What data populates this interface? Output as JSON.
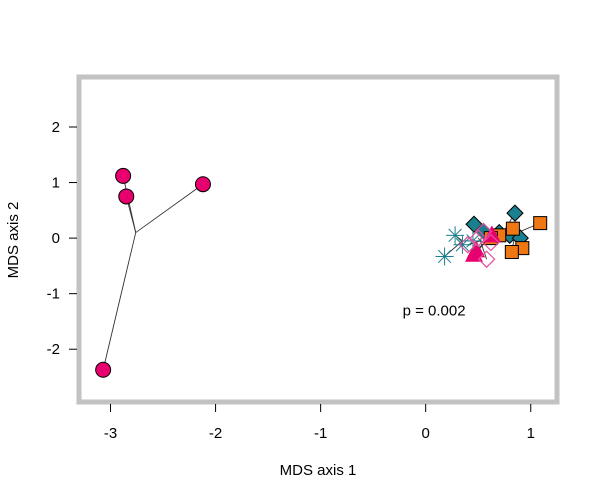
{
  "chart_data": {
    "type": "scatter",
    "title": "",
    "xlabel": "MDS axis 1",
    "ylabel": "MDS axis 2",
    "xlim": [
      -3.3,
      1.25
    ],
    "ylim": [
      -2.95,
      2.9
    ],
    "x_ticks": [
      -3,
      -2,
      -1,
      0,
      1
    ],
    "y_ticks": [
      -2,
      -1,
      0,
      1,
      2
    ],
    "x_tick_labels": [
      "-3",
      "-2",
      "-1",
      "0",
      "1"
    ],
    "y_tick_labels": [
      "-2",
      "-1",
      "0",
      "1",
      "2"
    ],
    "grid": false,
    "legend": null,
    "annotation": {
      "text": "p = 0.002",
      "x": 0.08,
      "y": -1.3
    },
    "colors": {
      "magenta": "#e8006f",
      "teal": "#1a7f8e",
      "orange": "#f07814",
      "pink": "#e8509c",
      "frame": "#c2c2c2"
    },
    "groups": [
      {
        "marker": "circle",
        "color": "magenta",
        "centroid": [
          -2.76,
          0.1
        ],
        "points": [
          [
            -2.88,
            1.12
          ],
          [
            -2.85,
            0.75
          ],
          [
            -2.12,
            0.97
          ],
          [
            -3.07,
            -2.37
          ]
        ]
      },
      {
        "marker": "diamond-filled",
        "color": "teal",
        "centroid": [
          0.72,
          0.05
        ],
        "points": [
          [
            0.46,
            0.25
          ],
          [
            0.85,
            0.45
          ],
          [
            0.8,
            0.05
          ],
          [
            0.9,
            0.0
          ],
          [
            0.55,
            0.12
          ],
          [
            0.7,
            0.1
          ]
        ]
      },
      {
        "marker": "square",
        "color": "orange",
        "centroid": [
          0.85,
          0.08
        ],
        "points": [
          [
            1.09,
            0.27
          ],
          [
            0.83,
            0.17
          ],
          [
            0.92,
            -0.18
          ],
          [
            0.82,
            -0.25
          ],
          [
            0.7,
            0.05
          ],
          [
            0.62,
            0.0
          ]
        ]
      },
      {
        "marker": "triangle",
        "color": "magenta",
        "centroid": [
          0.58,
          -0.05
        ],
        "points": [
          [
            0.46,
            -0.3
          ],
          [
            0.63,
            0.05
          ],
          [
            0.48,
            -0.22
          ]
        ]
      },
      {
        "marker": "asterisk",
        "color": "teal",
        "centroid": [
          0.35,
          -0.05
        ],
        "points": [
          [
            0.18,
            -0.33
          ],
          [
            0.28,
            0.05
          ],
          [
            0.45,
            -0.05
          ],
          [
            0.35,
            -0.12
          ]
        ]
      },
      {
        "marker": "diamond-open",
        "color": "pink",
        "centroid": [
          0.52,
          -0.05
        ],
        "points": [
          [
            0.55,
            0.12
          ],
          [
            0.58,
            -0.38
          ],
          [
            0.4,
            -0.12
          ],
          [
            0.5,
            0.0
          ],
          [
            0.62,
            -0.08
          ]
        ]
      }
    ]
  }
}
